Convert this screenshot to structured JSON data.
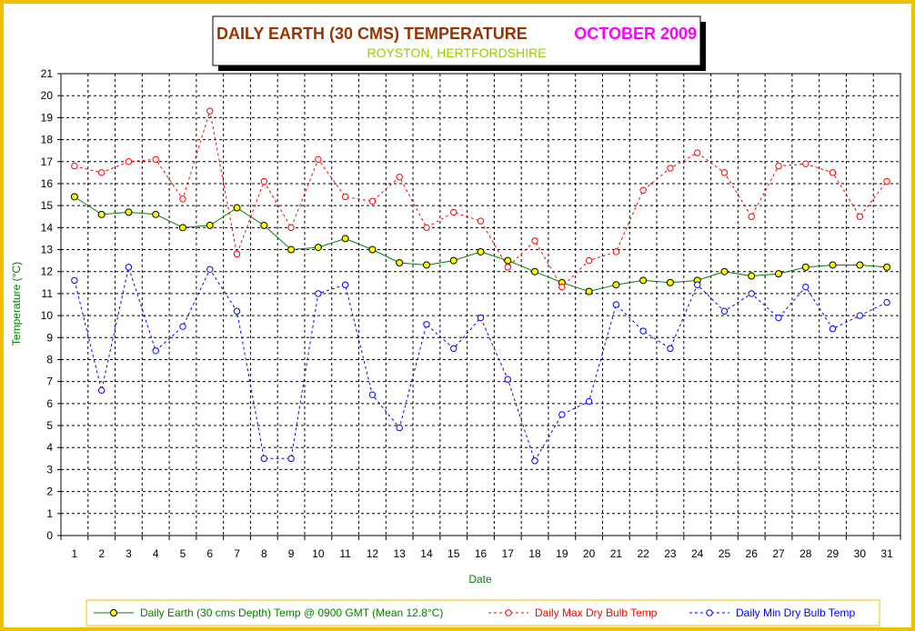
{
  "colors": {
    "frame": "#f0c000",
    "title_main": "#993300",
    "title_month": "#ff00ff",
    "subtitle": "#99cc00",
    "axis_label": "#008000",
    "earth_line": "#008000",
    "earth_marker": "#ffff00",
    "max_line": "#ff0000",
    "min_line": "#0000ff"
  },
  "chart_data": {
    "type": "line",
    "title": "DAILY EARTH (30 CMS) TEMPERATURE",
    "title_month": "OCTOBER 2009",
    "subtitle": "ROYSTON, HERTFORDSHIRE",
    "xlabel": "Date",
    "ylabel": "Temperature (°C)",
    "ylim": [
      0,
      21
    ],
    "y_ticks": [
      "0",
      "1",
      "2",
      "3",
      "4",
      "5",
      "6",
      "7",
      "8",
      "9",
      "10",
      "11",
      "12",
      "13",
      "14",
      "15",
      "16",
      "17",
      "18",
      "19",
      "20",
      "21"
    ],
    "x": [
      "1",
      "2",
      "3",
      "4",
      "5",
      "6",
      "7",
      "8",
      "9",
      "10",
      "11",
      "12",
      "13",
      "14",
      "15",
      "16",
      "17",
      "18",
      "19",
      "20",
      "21",
      "22",
      "23",
      "24",
      "25",
      "26",
      "27",
      "28",
      "29",
      "30",
      "31"
    ],
    "grid": true,
    "legend_position": "bottom",
    "series": [
      {
        "name": "Daily Earth (30 cms Depth) Temp @ 0900 GMT (Mean 12.8°C)",
        "style": "solid",
        "marker": "filled-circle",
        "values": [
          15.4,
          14.6,
          14.7,
          14.6,
          14.0,
          14.1,
          14.9,
          14.1,
          13.0,
          13.1,
          13.5,
          13.0,
          12.4,
          12.3,
          12.5,
          12.9,
          12.5,
          12.0,
          11.5,
          11.1,
          11.4,
          11.6,
          11.5,
          11.6,
          12.0,
          11.8,
          11.9,
          12.2,
          12.3,
          12.3,
          12.2
        ]
      },
      {
        "name": "Daily Max Dry Bulb Temp",
        "style": "dashed",
        "marker": "open-circle",
        "values": [
          16.8,
          16.5,
          17.0,
          17.1,
          15.3,
          19.3,
          12.8,
          16.1,
          14.0,
          17.1,
          15.4,
          15.2,
          16.3,
          14.0,
          14.7,
          14.3,
          12.2,
          13.4,
          11.3,
          12.5,
          12.9,
          15.7,
          16.7,
          17.4,
          16.5,
          14.5,
          16.8,
          16.9,
          16.5,
          14.5,
          16.1
        ]
      },
      {
        "name": "Daily Min Dry Bulb Temp",
        "style": "dashed",
        "marker": "open-circle",
        "values": [
          11.6,
          6.6,
          12.2,
          8.4,
          9.5,
          12.1,
          10.2,
          3.5,
          3.5,
          11.0,
          11.4,
          6.4,
          4.9,
          9.6,
          8.5,
          9.9,
          7.1,
          3.4,
          5.5,
          6.1,
          10.5,
          9.3,
          8.5,
          11.4,
          10.2,
          11.0,
          9.9,
          11.3,
          9.4,
          10.0,
          10.6
        ]
      }
    ]
  }
}
